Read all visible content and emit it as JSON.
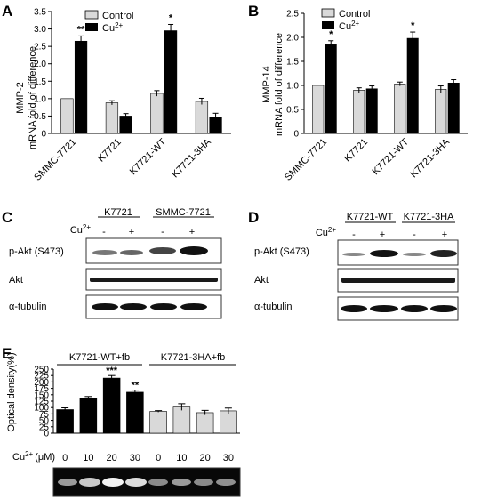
{
  "panels": {
    "A": "A",
    "B": "B",
    "C": "C",
    "D": "D",
    "E": "E"
  },
  "legend": {
    "control": "Control",
    "cu_base": "Cu",
    "cu_sup": "2+"
  },
  "chart_data": [
    {
      "panel": "A",
      "type": "bar",
      "ylabel_line1": "MMP-2",
      "ylabel_line2": "mRNA fold of difference",
      "categories": [
        "SMMC-7721",
        "K7721",
        "K7721-WT",
        "K7721-3HA"
      ],
      "ylim": [
        0,
        3.5
      ],
      "yticks": [
        "0",
        "0.5",
        "1.0",
        "1.5",
        "2.0",
        "2.5",
        "3.0",
        "3.5"
      ],
      "series": [
        {
          "name": "Control",
          "values": [
            1.0,
            0.88,
            1.15,
            0.92
          ],
          "errors": [
            0,
            0.06,
            0.08,
            0.09
          ]
        },
        {
          "name": "Cu2+",
          "values": [
            2.65,
            0.5,
            2.95,
            0.47
          ],
          "errors": [
            0.15,
            0.07,
            0.18,
            0.11
          ]
        }
      ],
      "significance": [
        "**",
        "",
        "*",
        ""
      ]
    },
    {
      "panel": "B",
      "type": "bar",
      "ylabel_line1": "MMP-14",
      "ylabel_line2": "mRNA fold of difference",
      "categories": [
        "SMMC-7721",
        "K7721",
        "K7721-WT",
        "K7721-3HA"
      ],
      "ylim": [
        0,
        2.5
      ],
      "yticks": [
        "0",
        "0.5",
        "1.0",
        "1.5",
        "2.0",
        "2.5"
      ],
      "series": [
        {
          "name": "Control",
          "values": [
            1.0,
            0.9,
            1.03,
            0.92
          ],
          "errors": [
            0,
            0.05,
            0.04,
            0.07
          ]
        },
        {
          "name": "Cu2+",
          "values": [
            1.85,
            0.93,
            1.98,
            1.05
          ],
          "errors": [
            0.08,
            0.06,
            0.13,
            0.07
          ]
        }
      ],
      "significance": [
        "*",
        "",
        "*",
        ""
      ]
    },
    {
      "panel": "E",
      "type": "bar",
      "ylabel": "Optical density(%)",
      "group_labels": [
        "K7721-WT+fb",
        "K7721-3HA+fb"
      ],
      "xlabel_base": "Cu",
      "xlabel_sup": "2+",
      "xlabel_unit": "(μM)",
      "categories": [
        "0",
        "10",
        "20",
        "30",
        "0",
        "10",
        "20",
        "30"
      ],
      "ylim": [
        0,
        250
      ],
      "yticks": [
        "0",
        "25",
        "50",
        "75",
        "100",
        "125",
        "150",
        "175",
        "200",
        "225",
        "250"
      ],
      "values": [
        92,
        136,
        215,
        160,
        85,
        102,
        80,
        87
      ],
      "errors": [
        7,
        7,
        10,
        8,
        3,
        13,
        9,
        11
      ],
      "bar_colors": [
        "#000000",
        "#000000",
        "#000000",
        "#000000",
        "#d9d9d9",
        "#d9d9d9",
        "#d9d9d9",
        "#d9d9d9"
      ],
      "significance": [
        "",
        "",
        "***",
        "**",
        "",
        "",
        "",
        ""
      ]
    }
  ],
  "blots": {
    "C": {
      "groups": [
        "K7721",
        "SMMC-7721"
      ],
      "cu_label": "Cu",
      "cu_sup": "2+",
      "treatment": [
        "-",
        "+",
        "-",
        "+"
      ],
      "rows": [
        "p-Akt (S473)",
        "Akt",
        "α-tubulin"
      ]
    },
    "D": {
      "groups": [
        "K7721-WT",
        "K7721-3HA"
      ],
      "cu_label": "Cu",
      "cu_sup": "2+",
      "treatment": [
        "-",
        "+",
        "-",
        "+"
      ],
      "rows": [
        "p-Akt (S473)",
        "Akt",
        "α-tubulin"
      ]
    }
  },
  "colors": {
    "control": "#d9d9d9",
    "cu": "#000000"
  }
}
